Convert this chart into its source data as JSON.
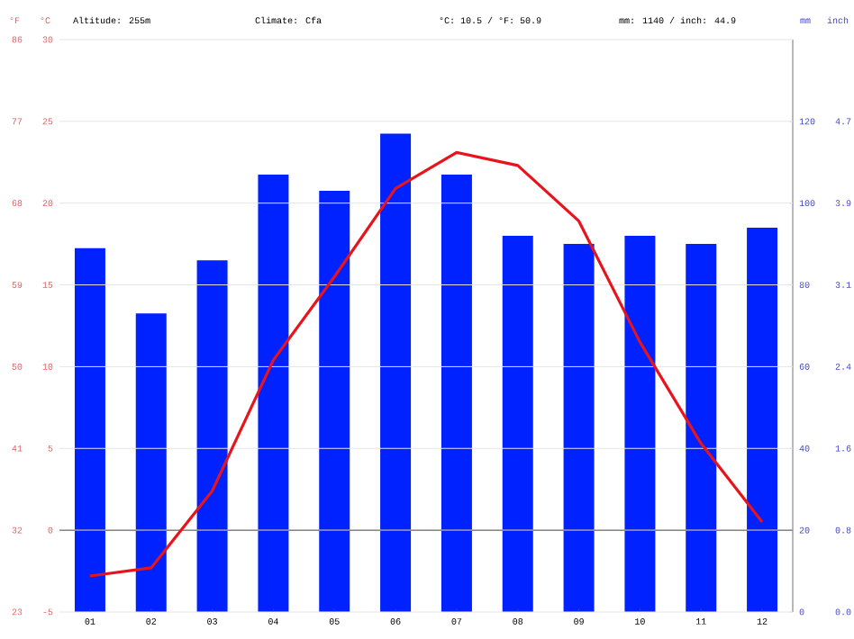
{
  "chart_data": {
    "type": "bar",
    "annotations": [
      "Altitude: 255m",
      "Climate: Cfa",
      "°C: 10.5 / °F: 50.9",
      "mm: 1140 / inch: 44.9",
      "inch",
      "0.0",
      "0.8",
      "1.6",
      "2.4",
      "3.1",
      "3.9",
      "4.7"
    ],
    "categories": [
      "01",
      "02",
      "03",
      "04",
      "05",
      "06",
      "07",
      "08",
      "09",
      "10",
      "11",
      "12"
    ],
    "series": [
      {
        "axis": "y2",
        "color": "#0022ff",
        "values": [
          89,
          73,
          86,
          107,
          103,
          117,
          107,
          92,
          90,
          92,
          90,
          94
        ]
      },
      {
        "type": "line",
        "axis": "y",
        "color": "#e8141b",
        "values": [
          -2.8,
          -2.3,
          2.4,
          10.4,
          15.5,
          20.9,
          23.1,
          22.3,
          18.9,
          11.5,
          5.3,
          0.5
        ]
      }
    ],
    "ylabel": "°C",
    "ylim": [
      -5,
      30
    ],
    "yticks": [
      -5,
      0,
      5,
      10,
      15,
      20,
      25,
      30
    ],
    "y2label": "mm",
    "y2lim": [
      0,
      140
    ],
    "y2ticks": [
      0,
      20,
      40,
      60,
      80,
      100,
      120
    ],
    "y3label": "°F",
    "y3lim": [
      23,
      86
    ],
    "y3ticks": [
      23,
      32,
      41,
      50,
      59,
      68,
      77,
      86
    ],
    "ref_lines": [
      {
        "axis": "y",
        "value": 0,
        "color": "#888888"
      }
    ],
    "grid": "y"
  }
}
